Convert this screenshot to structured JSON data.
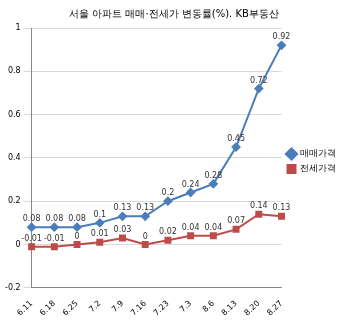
{
  "chart_data": {
    "type": "line",
    "title": "서울 아파트 매매·전세가 변동률(%). KB부동산",
    "categories": [
      "6.11",
      "6.18",
      "6.25",
      "7.2",
      "7.9",
      "7.16",
      "7.23",
      "7.3",
      "8.6",
      "8.13",
      "8.20",
      "8.27"
    ],
    "series": [
      {
        "name": "매매가격",
        "color": "#4a7ebb",
        "marker": "diamond",
        "line_style": "solid",
        "values": [
          0.08,
          0.08,
          0.08,
          0.1,
          0.13,
          0.13,
          0.2,
          0.24,
          0.28,
          0.45,
          0.72,
          0.92
        ]
      },
      {
        "name": "전세가격",
        "color": "#be4b48",
        "marker": "square",
        "line_style": "solid",
        "values": [
          -0.01,
          -0.01,
          0,
          0.01,
          0.03,
          0,
          0.02,
          0.04,
          0.04,
          0.07,
          0.14,
          0.13
        ]
      }
    ],
    "ylim": [
      -0.2,
      1
    ],
    "yticks": [
      -0.2,
      0,
      0.2,
      0.4,
      0.6,
      0.8,
      1
    ],
    "grid": true,
    "legend": "right",
    "data_labels": true
  }
}
